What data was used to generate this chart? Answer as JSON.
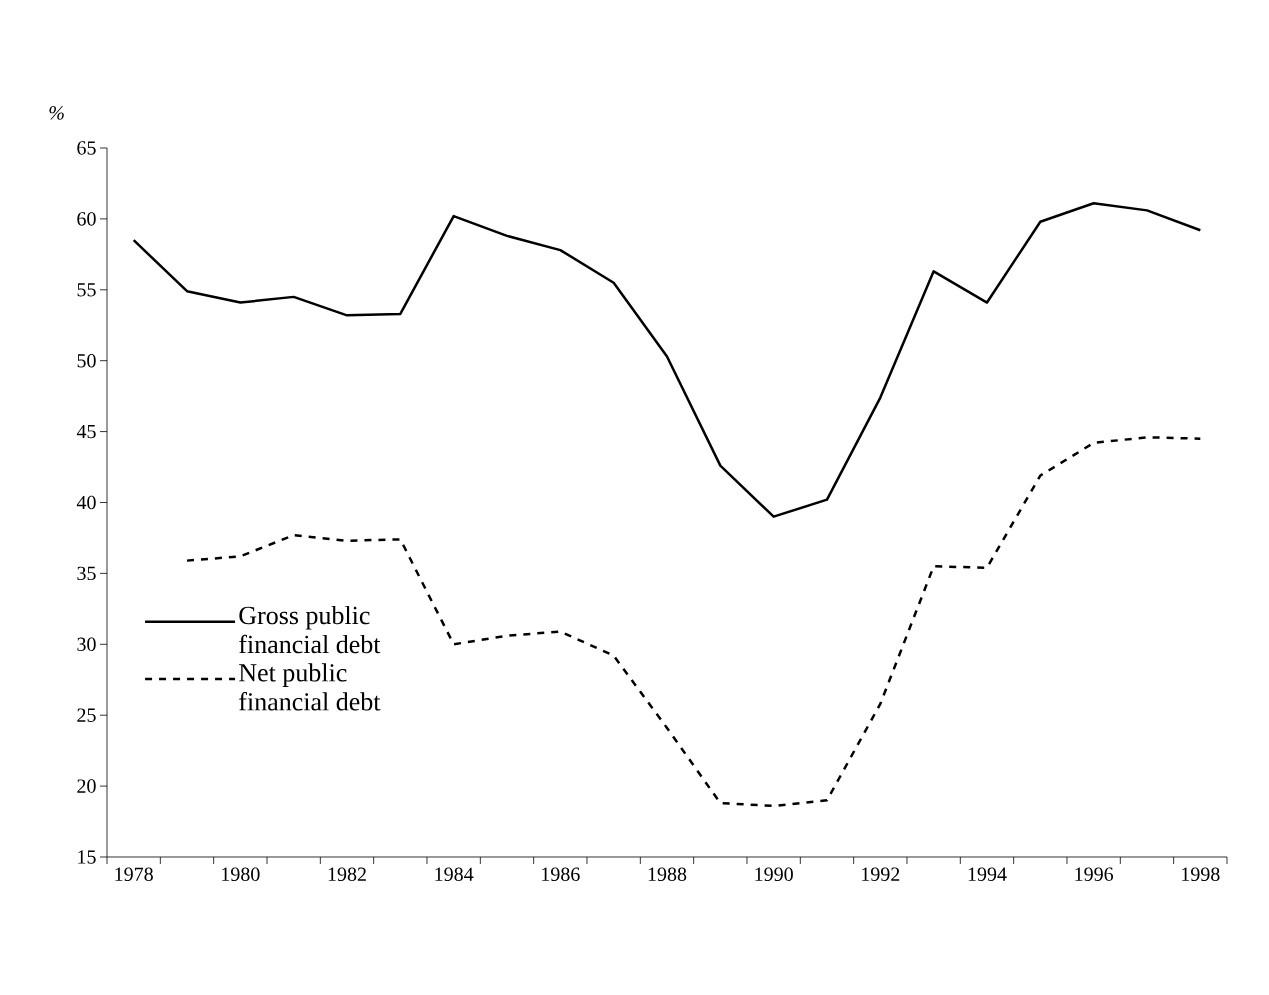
{
  "chart_data": {
    "type": "line",
    "categories": [
      "1978",
      null,
      "1980",
      null,
      "1982",
      null,
      "1984",
      null,
      "1986",
      null,
      "1988",
      null,
      "1990",
      null,
      "1992",
      null,
      "1994",
      null,
      "1996",
      null,
      "1998"
    ],
    "series": [
      {
        "name": "Gross public financial debt",
        "color": "#000000",
        "line_style": "solid",
        "values": [
          58.5,
          54.9,
          54.1,
          54.5,
          53.2,
          53.3,
          60.2,
          58.8,
          57.8,
          55.5,
          50.3,
          42.6,
          39.0,
          40.2,
          47.4,
          56.3,
          54.1,
          59.8,
          61.1,
          60.6,
          59.2
        ]
      },
      {
        "name": "Net public financial debt",
        "color": "#000000",
        "line_style": "dashed",
        "values": [
          null,
          35.9,
          36.2,
          37.7,
          37.3,
          37.4,
          30.0,
          30.6,
          30.9,
          29.2,
          24.1,
          18.8,
          18.6,
          19.0,
          25.8,
          35.5,
          35.4,
          41.9,
          44.2,
          44.6,
          44.5
        ]
      }
    ],
    "ylabel": "%",
    "ylim": [
      15,
      65
    ],
    "yticks": [
      15,
      20,
      25,
      30,
      35,
      40,
      45,
      50,
      55,
      60,
      65
    ],
    "legend": "left"
  }
}
